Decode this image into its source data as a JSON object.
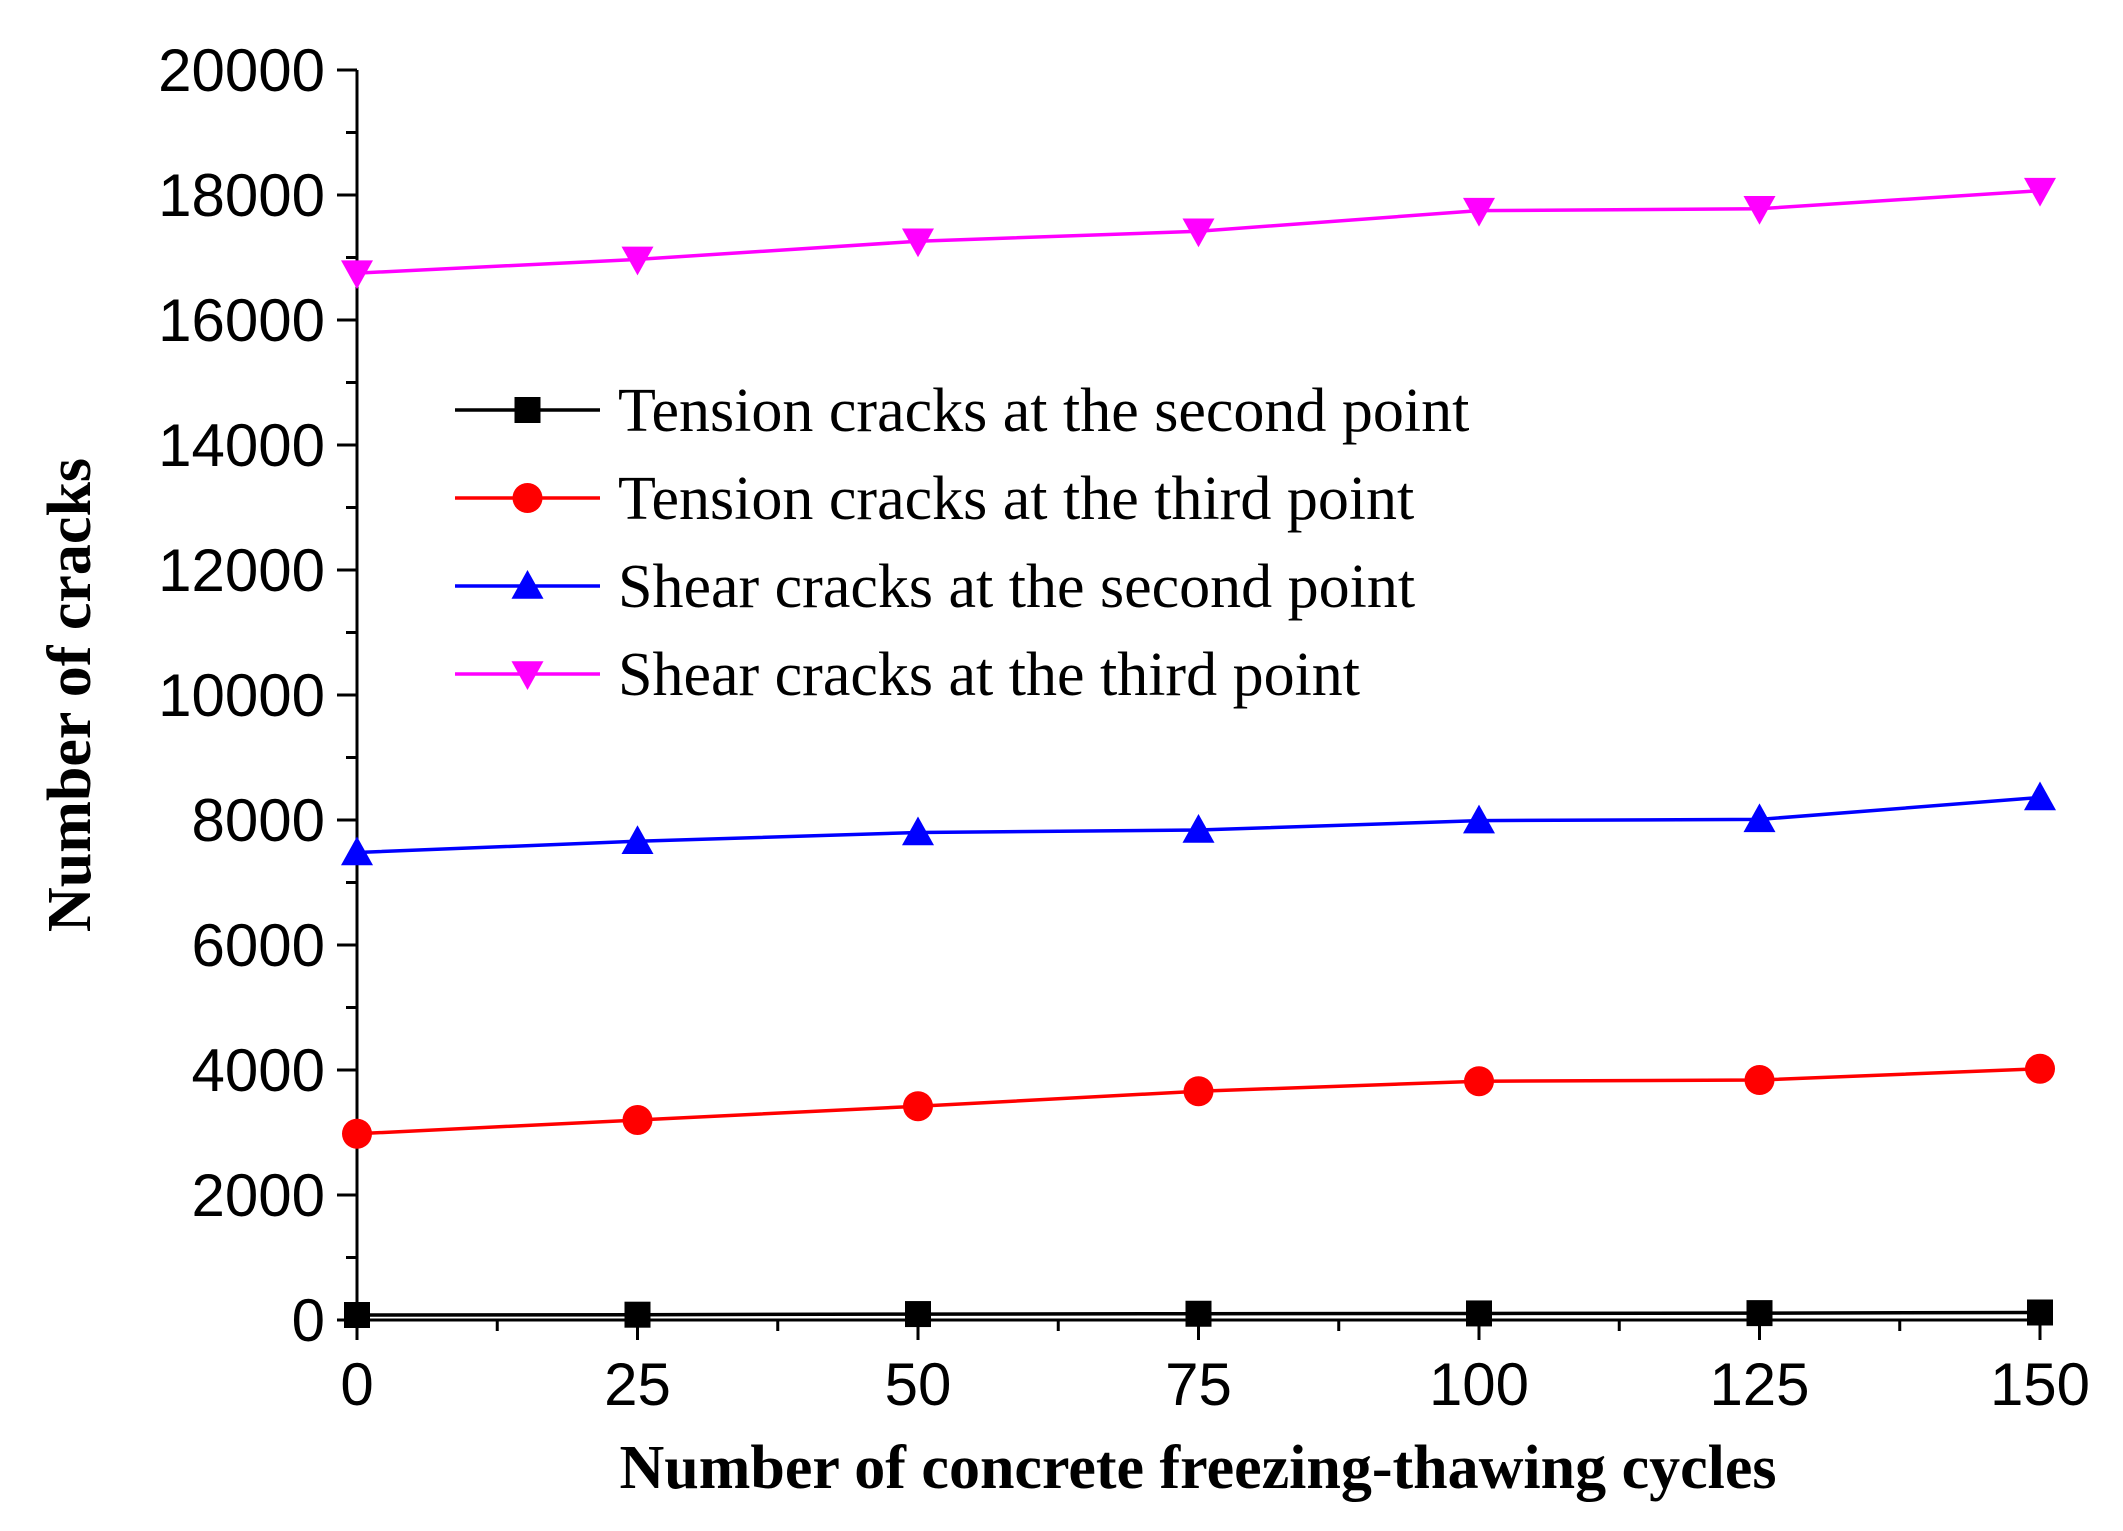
{
  "chart_data": {
    "type": "line",
    "title": "",
    "xlabel": "Number of concrete freezing-thawing cycles",
    "ylabel": "Number of cracks",
    "x": [
      0,
      25,
      50,
      75,
      100,
      125,
      150
    ],
    "xlim": [
      0,
      150
    ],
    "ylim": [
      0,
      20000
    ],
    "xticks": [
      0,
      25,
      50,
      75,
      100,
      125,
      150
    ],
    "xtick_labels": [
      "0",
      "25",
      "50",
      "75",
      "100",
      "125",
      "150"
    ],
    "yticks": [
      0,
      2000,
      4000,
      6000,
      8000,
      10000,
      12000,
      14000,
      16000,
      18000,
      20000
    ],
    "ytick_labels": [
      "0",
      "2000",
      "4000",
      "6000",
      "8000",
      "10000",
      "12000",
      "14000",
      "16000",
      "18000",
      "20000"
    ],
    "grid": false,
    "legend_position": "upper-left",
    "series": [
      {
        "name": "Tension cracks at the second point",
        "color": "#000000",
        "marker": "square",
        "values": [
          80,
          85,
          95,
          100,
          105,
          110,
          120
        ]
      },
      {
        "name": "Tension cracks at the third point",
        "color": "#ff0000",
        "marker": "circle",
        "values": [
          2980,
          3200,
          3420,
          3660,
          3820,
          3840,
          4020
        ]
      },
      {
        "name": "Shear cracks at the second point",
        "color": "#0000ff",
        "marker": "triangle-up",
        "values": [
          7480,
          7660,
          7800,
          7840,
          7990,
          8010,
          8360
        ]
      },
      {
        "name": "Shear cracks at the third point",
        "color": "#ff00ff",
        "marker": "triangle-down",
        "values": [
          16750,
          16970,
          17260,
          17420,
          17750,
          17780,
          18070
        ]
      }
    ]
  }
}
